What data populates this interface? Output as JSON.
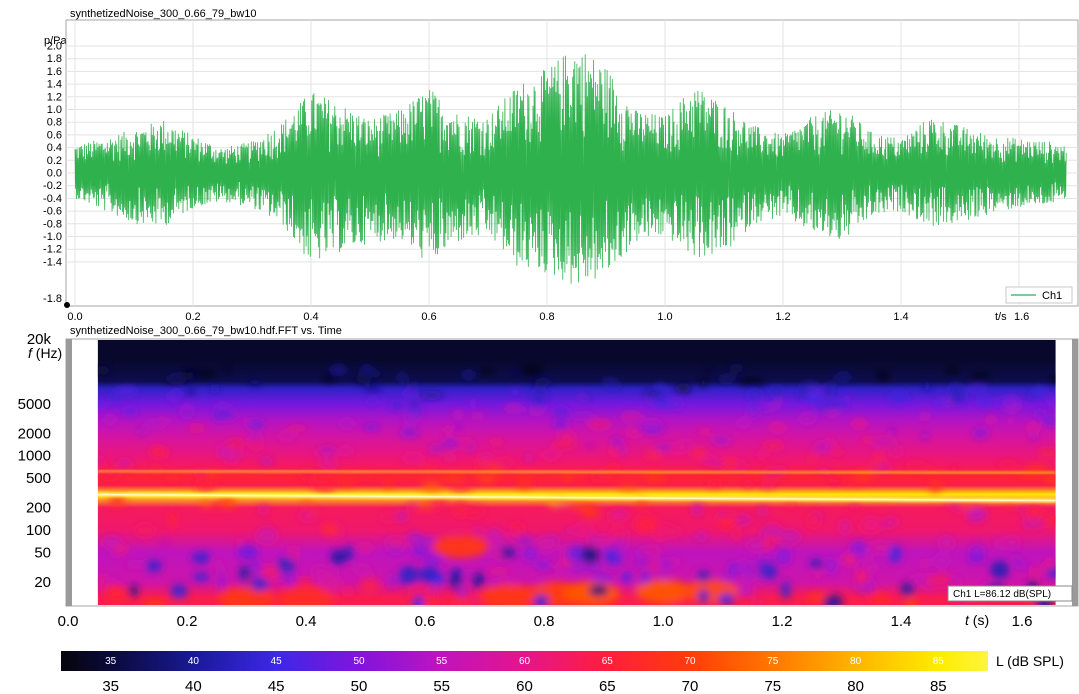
{
  "chart_data": [
    {
      "type": "line",
      "title": "synthetizedNoise_300_0.66_79_bw10",
      "ylabel": "p/Pa",
      "xlabel": "t/s",
      "xlim": [
        0,
        1.7
      ],
      "ylim": [
        -1.8,
        2.1
      ],
      "x_ticks": [
        "0.0",
        "0.2",
        "0.4",
        "0.6",
        "0.8",
        "1.0",
        "1.2",
        "1.4",
        "1.6"
      ],
      "y_ticks": [
        "2.0",
        "1.8",
        "1.6",
        "1.4",
        "1.2",
        "1.0",
        "0.8",
        "0.6",
        "0.4",
        "0.2",
        "0.0",
        "-0.2",
        "-0.4",
        "-0.6",
        "-0.8",
        "-1.0",
        "-1.2",
        "-1.4",
        "-1.8"
      ],
      "legend": {
        "position": "bottom-right"
      },
      "grid": true,
      "series": [
        {
          "name": "Ch1",
          "color": "#2fb14d",
          "envelope": {
            "t": [
              0.0,
              0.05,
              0.1,
              0.15,
              0.2,
              0.25,
              0.3,
              0.35,
              0.4,
              0.45,
              0.5,
              0.55,
              0.6,
              0.65,
              0.7,
              0.75,
              0.8,
              0.85,
              0.9,
              0.95,
              1.0,
              1.05,
              1.1,
              1.15,
              1.2,
              1.25,
              1.3,
              1.35,
              1.4,
              1.45,
              1.5,
              1.55,
              1.6,
              1.65,
              1.68
            ],
            "max": [
              0.45,
              0.55,
              0.7,
              0.85,
              0.6,
              0.4,
              0.5,
              0.8,
              1.3,
              1.1,
              0.85,
              1.0,
              1.35,
              0.95,
              0.9,
              1.4,
              1.65,
              2.05,
              1.7,
              1.0,
              0.9,
              1.4,
              1.1,
              0.75,
              0.6,
              0.9,
              1.05,
              0.65,
              0.55,
              0.9,
              0.75,
              0.6,
              0.55,
              0.5,
              0.45
            ],
            "min": [
              -0.4,
              -0.6,
              -0.8,
              -0.85,
              -0.55,
              -0.45,
              -0.55,
              -0.8,
              -1.45,
              -1.25,
              -1.1,
              -1.05,
              -1.45,
              -1.1,
              -1.0,
              -1.5,
              -1.6,
              -1.8,
              -1.65,
              -1.1,
              -1.0,
              -1.35,
              -1.3,
              -0.8,
              -0.7,
              -0.95,
              -1.1,
              -0.7,
              -0.6,
              -0.85,
              -0.8,
              -0.65,
              -0.55,
              -0.5,
              -0.45
            ]
          }
        }
      ]
    },
    {
      "type": "heatmap",
      "title": "synthetizedNoise_300_0.66_79_bw10.hdf.FFT vs. Time",
      "xlabel": "t (s)",
      "ylabel": "f (Hz)",
      "xlim": [
        0,
        1.7
      ],
      "ylim": [
        10,
        20000
      ],
      "yscale": "log",
      "x_ticks": [
        "0.0",
        "0.2",
        "0.4",
        "0.6",
        "0.8",
        "1.0",
        "1.2",
        "1.4",
        "1.6"
      ],
      "y_ticks": [
        "20k",
        "5000",
        "2000",
        "1000",
        "500",
        "200",
        "100",
        "50",
        "20"
      ],
      "colorbar": {
        "label": "L (dB SPL)",
        "range": [
          32,
          88
        ],
        "ticks": [
          "35",
          "40",
          "45",
          "50",
          "55",
          "60",
          "65",
          "70",
          "75",
          "80",
          "85"
        ]
      },
      "annotation": "Ch1 L=86.12 dB(SPL)",
      "data_time_range": [
        0.05,
        1.66
      ],
      "tonal_lines_hz": [
        300,
        600
      ],
      "level_db_by_frequency": {
        "f": [
          20000,
          10000,
          8000,
          5000,
          3000,
          2000,
          1000,
          700,
          500,
          400,
          300,
          200,
          100,
          50,
          20,
          12
        ],
        "db": [
          34,
          36,
          43,
          49,
          54,
          57,
          61,
          63,
          66,
          64,
          85,
          63,
          62,
          55,
          57,
          64
        ]
      },
      "hotspots": [
        {
          "t": 0.82,
          "f": 14,
          "db": 70
        },
        {
          "t": 0.88,
          "f": 14,
          "db": 72
        },
        {
          "t": 1.0,
          "f": 15,
          "db": 72
        },
        {
          "t": 1.08,
          "f": 15,
          "db": 71
        },
        {
          "t": 0.3,
          "f": 12,
          "db": 69
        },
        {
          "t": 0.4,
          "f": 12,
          "db": 67
        },
        {
          "t": 0.66,
          "f": 60,
          "db": 69
        },
        {
          "t": 0.74,
          "f": 13,
          "db": 69
        }
      ]
    }
  ]
}
